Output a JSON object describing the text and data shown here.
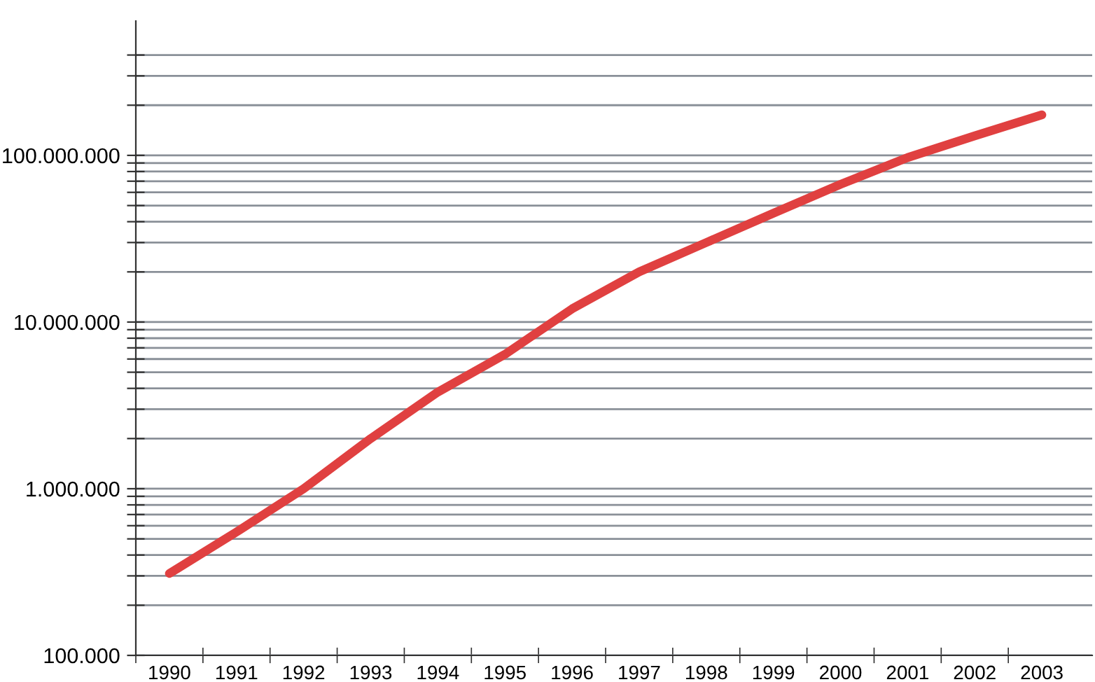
{
  "chart_data": {
    "type": "line",
    "log": "y",
    "grid": "y",
    "legend": false,
    "marker": "none",
    "line_style": "solid",
    "categories": [
      "1990",
      "1991",
      "1992",
      "1993",
      "1994",
      "1995",
      "1996",
      "1997",
      "1998",
      "1999",
      "2000",
      "2001",
      "2002",
      "2003"
    ],
    "series": [
      {
        "color": "#e04040",
        "values": [
          310000,
          550000,
          1000000,
          2000000,
          3800000,
          6400000,
          12000000,
          20000000,
          30000000,
          45000000,
          67000000,
          97000000,
          131000000,
          175000000
        ]
      }
    ],
    "ylim": [
      100000,
      640000000
    ],
    "yticks": [
      {
        "value": 100000,
        "label": "100.000"
      },
      {
        "value": 200000,
        "label": null
      },
      {
        "value": 300000,
        "label": null
      },
      {
        "value": 400000,
        "label": null
      },
      {
        "value": 500000,
        "label": null
      },
      {
        "value": 600000,
        "label": null
      },
      {
        "value": 700000,
        "label": null
      },
      {
        "value": 800000,
        "label": null
      },
      {
        "value": 900000,
        "label": null
      },
      {
        "value": 1000000,
        "label": "1.000.000"
      },
      {
        "value": 2000000,
        "label": null
      },
      {
        "value": 3000000,
        "label": null
      },
      {
        "value": 4000000,
        "label": null
      },
      {
        "value": 5000000,
        "label": null
      },
      {
        "value": 6000000,
        "label": null
      },
      {
        "value": 7000000,
        "label": null
      },
      {
        "value": 8000000,
        "label": null
      },
      {
        "value": 9000000,
        "label": null
      },
      {
        "value": 10000000,
        "label": "10.000.000"
      },
      {
        "value": 20000000,
        "label": null
      },
      {
        "value": 30000000,
        "label": null
      },
      {
        "value": 40000000,
        "label": null
      },
      {
        "value": 50000000,
        "label": null
      },
      {
        "value": 60000000,
        "label": null
      },
      {
        "value": 70000000,
        "label": null
      },
      {
        "value": 80000000,
        "label": null
      },
      {
        "value": 90000000,
        "label": null
      },
      {
        "value": 100000000,
        "label": "100.000.000"
      },
      {
        "value": 200000000,
        "label": null
      },
      {
        "value": 300000000,
        "label": null
      },
      {
        "value": 400000000,
        "label": null
      }
    ]
  }
}
